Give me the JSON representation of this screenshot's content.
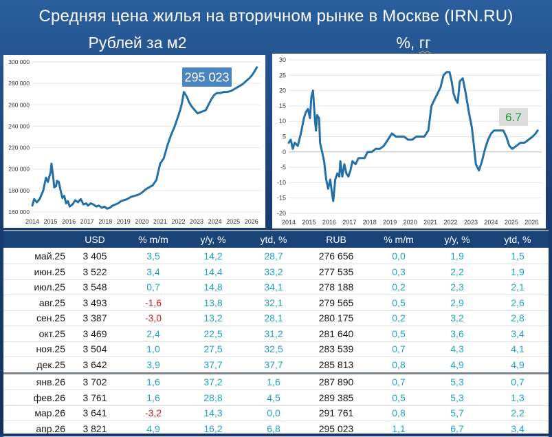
{
  "title": "Средняя цена жилья на вторичном рынке в Москве (IRN.RU)",
  "left_chart_title": "Рублей за м2",
  "right_chart_title_prefix": "%,",
  "right_chart_title_unit": "гг",
  "colors": {
    "line": "#2170a8",
    "callout_left": "#4a86c0",
    "callout_right_text": "#1e9a3c",
    "negative": "#c81e1e",
    "positive": "#1fa3c4",
    "header_bg": "#1a4479"
  },
  "chart_data": [
    {
      "type": "line",
      "title": "Рублей за м2",
      "annotation": "295 023",
      "x_ticks": [
        "2014",
        "2015",
        "2016",
        "2017",
        "2018",
        "2019",
        "2020",
        "2021",
        "2022",
        "2023",
        "2024",
        "2025",
        "2026"
      ],
      "y_ticks": [
        "160 000",
        "180 000",
        "200 000",
        "220 000",
        "240 000",
        "260 000",
        "280 000",
        "300 000"
      ],
      "ylim": [
        160000,
        300000
      ],
      "xlim": [
        2014.0,
        2026.5
      ],
      "series": [
        {
          "x": [
            2014.0,
            2014.1,
            2014.25,
            2014.4,
            2014.6,
            2014.75,
            2014.85,
            2015.0,
            2015.05,
            2015.15,
            2015.2,
            2015.3,
            2015.35,
            2015.45,
            2015.55,
            2015.65,
            2015.75,
            2015.85,
            2015.95,
            2016.05,
            2016.2,
            2016.35,
            2016.5,
            2016.65,
            2016.8,
            2016.95,
            2017.05,
            2017.2,
            2017.35,
            2017.5,
            2017.65,
            2017.8,
            2017.95,
            2018.1,
            2018.25,
            2018.4,
            2018.55,
            2018.7,
            2018.85,
            2019.0,
            2019.2,
            2019.4,
            2019.6,
            2019.8,
            2020.0,
            2020.2,
            2020.4,
            2020.6,
            2020.8,
            2021.0,
            2021.2,
            2021.4,
            2021.6,
            2021.8,
            2022.0,
            2022.1,
            2022.2,
            2022.3,
            2022.45,
            2022.6,
            2022.75,
            2022.9,
            2023.05,
            2023.2,
            2023.35,
            2023.5,
            2023.65,
            2023.8,
            2023.95,
            2024.1,
            2024.3,
            2024.5,
            2024.7,
            2024.9,
            2025.1,
            2025.3,
            2025.5,
            2025.7,
            2025.9,
            2026.05,
            2026.2,
            2026.3
          ],
          "y": [
            166000,
            172000,
            169000,
            172000,
            180000,
            192000,
            188000,
            197000,
            205000,
            192000,
            183000,
            184000,
            189000,
            188000,
            180000,
            173000,
            175000,
            168000,
            170000,
            165000,
            167000,
            171000,
            169000,
            172000,
            167000,
            168000,
            166000,
            168000,
            167000,
            165000,
            166000,
            164000,
            165000,
            163000,
            164000,
            166000,
            167000,
            168000,
            170000,
            171000,
            172000,
            174000,
            175000,
            176000,
            178000,
            181000,
            183000,
            185000,
            190000,
            205000,
            210000,
            222000,
            232000,
            240000,
            250000,
            255000,
            262000,
            272000,
            268000,
            262000,
            258000,
            255000,
            252000,
            253000,
            254000,
            255000,
            260000,
            265000,
            269000,
            271000,
            271000,
            272000,
            272000,
            273000,
            275000,
            277000,
            279000,
            282000,
            285000,
            288000,
            292000,
            295000
          ]
        }
      ]
    },
    {
      "type": "line",
      "title": "%, гг",
      "annotation": "6.7",
      "x_ticks": [
        "2014",
        "2015",
        "2016",
        "2017",
        "2018",
        "2019",
        "2020",
        "2021",
        "2022",
        "2023",
        "2024",
        "2025",
        "2026"
      ],
      "y_ticks": [
        "30",
        "25",
        "20",
        "15",
        "10",
        "5",
        "0",
        "-5",
        "-10",
        "-15",
        "-20"
      ],
      "ylim": [
        -20,
        30
      ],
      "xlim": [
        2014.0,
        2026.5
      ],
      "series": [
        {
          "x": [
            2014.0,
            2014.1,
            2014.2,
            2014.3,
            2014.45,
            2014.6,
            2014.75,
            2014.85,
            2014.95,
            2015.05,
            2015.12,
            2015.2,
            2015.3,
            2015.35,
            2015.4,
            2015.5,
            2015.55,
            2015.65,
            2015.75,
            2015.85,
            2015.95,
            2016.05,
            2016.15,
            2016.2,
            2016.3,
            2016.4,
            2016.5,
            2016.55,
            2016.65,
            2016.75,
            2016.85,
            2016.95,
            2017.05,
            2017.15,
            2017.3,
            2017.45,
            2017.6,
            2017.75,
            2017.9,
            2018.1,
            2018.3,
            2018.5,
            2018.7,
            2018.9,
            2019.1,
            2019.3,
            2019.5,
            2019.7,
            2019.9,
            2020.1,
            2020.3,
            2020.5,
            2020.7,
            2020.9,
            2021.05,
            2021.2,
            2021.35,
            2021.5,
            2021.65,
            2021.8,
            2021.95,
            2022.05,
            2022.15,
            2022.25,
            2022.35,
            2022.45,
            2022.6,
            2022.75,
            2022.9,
            2023.05,
            2023.15,
            2023.25,
            2023.4,
            2023.55,
            2023.7,
            2023.85,
            2024.0,
            2024.15,
            2024.3,
            2024.45,
            2024.6,
            2024.75,
            2024.9,
            2025.05,
            2025.25,
            2025.45,
            2025.65,
            2025.85,
            2026.05,
            2026.2,
            2026.3
          ],
          "y": [
            3,
            4,
            1,
            3,
            2,
            6,
            11,
            13,
            14,
            11,
            18,
            20,
            10,
            7,
            12,
            11,
            3,
            0,
            -3,
            -9,
            -12,
            -9,
            -14,
            -16,
            -9,
            -7,
            -8,
            -3,
            -8,
            -4,
            -7,
            -8,
            -6,
            -3,
            -4,
            -2,
            -2,
            -2,
            0,
            0,
            1,
            1,
            2,
            4,
            6,
            5,
            5,
            5,
            4,
            4,
            5,
            5,
            5,
            7,
            15,
            17,
            19,
            21,
            25,
            26,
            26,
            23,
            19,
            17,
            16,
            23,
            24,
            19,
            13,
            8,
            2,
            -4,
            -6,
            -3,
            1,
            4,
            6,
            7,
            7,
            7,
            7,
            5,
            2,
            1,
            2,
            3,
            3,
            4,
            5,
            6,
            7
          ]
        }
      ]
    }
  ],
  "table": {
    "headers": [
      "",
      "USD",
      "% m/m",
      "y/y, %",
      "ytd, %",
      "RUB",
      "% m/m",
      "y/y, %",
      "ytd, %"
    ],
    "rows": [
      [
        "май.25",
        "3 405",
        "3,5",
        "14,2",
        "28,7",
        "276 656",
        "0,0",
        "1,9",
        "1,5"
      ],
      [
        "июн.25",
        "3 522",
        "3,4",
        "14,4",
        "33,2",
        "277 535",
        "0,3",
        "2,2",
        "1,9"
      ],
      [
        "июл.25",
        "3 548",
        "0,7",
        "14,8",
        "34,1",
        "278 188",
        "0,2",
        "2,3",
        "2,1"
      ],
      [
        "авг.25",
        "3 493",
        "-1,6",
        "13,8",
        "32,1",
        "279 565",
        "0,5",
        "2,9",
        "2,6"
      ],
      [
        "сен.25",
        "3 387",
        "-3,0",
        "13,2",
        "28,1",
        "280 175",
        "0,2",
        "3,2",
        "2,8"
      ],
      [
        "окт.25",
        "3 469",
        "2,4",
        "22,5",
        "31,2",
        "281 640",
        "0,5",
        "3,6",
        "3,4"
      ],
      [
        "ноя.25",
        "3 504",
        "1,0",
        "27,5",
        "32,5",
        "283 539",
        "0,7",
        "4,3",
        "4,1"
      ],
      [
        "дек.25",
        "3 642",
        "3,9",
        "37,7",
        "37,7",
        "285 813",
        "0,8",
        "4,9",
        "4,9"
      ],
      [
        "янв.26",
        "3 702",
        "1,6",
        "37,2",
        "1,6",
        "287 890",
        "0,7",
        "5,3",
        "0,7"
      ],
      [
        "фев.26",
        "3 761",
        "1,6",
        "28,8",
        "4,5",
        "289 385",
        "0,5",
        "5,3",
        "1,3"
      ],
      [
        "мар.26",
        "3 641",
        "-3,2",
        "14,3",
        "0,0",
        "291 761",
        "0,8",
        "5,7",
        "2,2"
      ],
      [
        "апр.26",
        "3 821",
        "4,9",
        "16,2",
        "6,8",
        "295 023",
        "1,1",
        "6,7",
        "3,4"
      ]
    ]
  }
}
